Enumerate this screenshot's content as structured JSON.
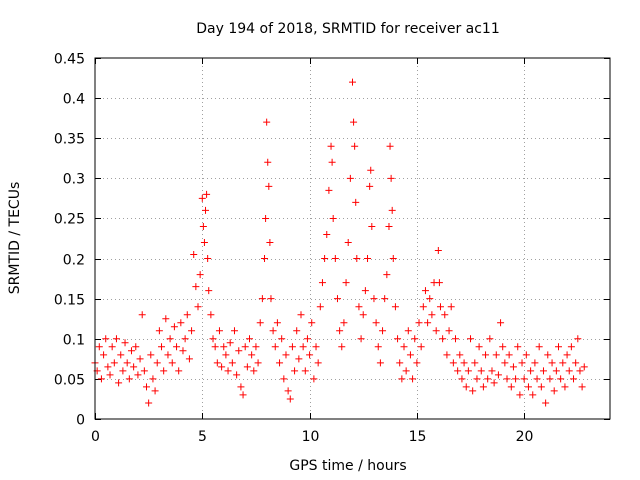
{
  "chart_data": {
    "type": "scatter",
    "title": "Day 194 of 2018, SRMTID for receiver ac11",
    "xlabel": "GPS time / hours",
    "ylabel": "SRMTID / TECUs",
    "xlim": [
      0,
      24
    ],
    "ylim": [
      0,
      0.45
    ],
    "grid": true,
    "marker": "+",
    "color": "#ff0000",
    "x_ticks": [
      0,
      5,
      10,
      15,
      20
    ],
    "x_tick_labels": [
      "0",
      "5",
      "10",
      "15",
      "20"
    ],
    "y_ticks": [
      0,
      0.05,
      0.1,
      0.15,
      0.2,
      0.25,
      0.3,
      0.35,
      0.4,
      0.45
    ],
    "y_tick_labels": [
      "0",
      "0.05",
      "0.1",
      "0.15",
      "0.2",
      "0.25",
      "0.3",
      "0.35",
      "0.4",
      "0.45"
    ],
    "series": [
      {
        "name": "SRMTID",
        "points": [
          [
            0.0,
            0.07
          ],
          [
            0.1,
            0.06
          ],
          [
            0.2,
            0.09
          ],
          [
            0.3,
            0.05
          ],
          [
            0.4,
            0.08
          ],
          [
            0.5,
            0.1
          ],
          [
            0.6,
            0.065
          ],
          [
            0.7,
            0.055
          ],
          [
            0.8,
            0.09
          ],
          [
            0.9,
            0.07
          ],
          [
            1.0,
            0.1
          ],
          [
            1.1,
            0.045
          ],
          [
            1.2,
            0.08
          ],
          [
            1.3,
            0.06
          ],
          [
            1.4,
            0.095
          ],
          [
            1.5,
            0.07
          ],
          [
            1.6,
            0.05
          ],
          [
            1.7,
            0.085
          ],
          [
            1.8,
            0.065
          ],
          [
            1.9,
            0.09
          ],
          [
            2.0,
            0.055
          ],
          [
            2.1,
            0.075
          ],
          [
            2.2,
            0.13
          ],
          [
            2.3,
            0.06
          ],
          [
            2.4,
            0.04
          ],
          [
            2.5,
            0.02
          ],
          [
            2.6,
            0.08
          ],
          [
            2.7,
            0.05
          ],
          [
            2.8,
            0.035
          ],
          [
            2.9,
            0.07
          ],
          [
            3.0,
            0.11
          ],
          [
            3.1,
            0.09
          ],
          [
            3.2,
            0.06
          ],
          [
            3.3,
            0.125
          ],
          [
            3.4,
            0.08
          ],
          [
            3.5,
            0.1
          ],
          [
            3.6,
            0.07
          ],
          [
            3.7,
            0.115
          ],
          [
            3.8,
            0.09
          ],
          [
            3.9,
            0.06
          ],
          [
            4.0,
            0.12
          ],
          [
            4.1,
            0.085
          ],
          [
            4.2,
            0.1
          ],
          [
            4.3,
            0.13
          ],
          [
            4.4,
            0.075
          ],
          [
            4.5,
            0.11
          ],
          [
            4.6,
            0.205
          ],
          [
            4.7,
            0.165
          ],
          [
            4.8,
            0.14
          ],
          [
            4.9,
            0.18
          ],
          [
            5.0,
            0.275
          ],
          [
            5.05,
            0.24
          ],
          [
            5.1,
            0.22
          ],
          [
            5.15,
            0.26
          ],
          [
            5.2,
            0.28
          ],
          [
            5.25,
            0.2
          ],
          [
            5.3,
            0.16
          ],
          [
            5.4,
            0.13
          ],
          [
            5.5,
            0.1
          ],
          [
            5.6,
            0.09
          ],
          [
            5.7,
            0.07
          ],
          [
            5.8,
            0.11
          ],
          [
            5.9,
            0.065
          ],
          [
            6.0,
            0.09
          ],
          [
            6.1,
            0.08
          ],
          [
            6.2,
            0.06
          ],
          [
            6.3,
            0.095
          ],
          [
            6.4,
            0.07
          ],
          [
            6.5,
            0.11
          ],
          [
            6.6,
            0.055
          ],
          [
            6.7,
            0.085
          ],
          [
            6.8,
            0.04
          ],
          [
            6.9,
            0.03
          ],
          [
            7.0,
            0.09
          ],
          [
            7.1,
            0.065
          ],
          [
            7.2,
            0.1
          ],
          [
            7.3,
            0.08
          ],
          [
            7.4,
            0.06
          ],
          [
            7.5,
            0.09
          ],
          [
            7.6,
            0.07
          ],
          [
            7.7,
            0.12
          ],
          [
            7.8,
            0.15
          ],
          [
            7.9,
            0.2
          ],
          [
            7.95,
            0.25
          ],
          [
            8.0,
            0.37
          ],
          [
            8.05,
            0.32
          ],
          [
            8.1,
            0.29
          ],
          [
            8.15,
            0.22
          ],
          [
            8.2,
            0.15
          ],
          [
            8.3,
            0.11
          ],
          [
            8.4,
            0.09
          ],
          [
            8.5,
            0.12
          ],
          [
            8.6,
            0.07
          ],
          [
            8.7,
            0.1
          ],
          [
            8.8,
            0.05
          ],
          [
            8.9,
            0.08
          ],
          [
            9.0,
            0.035
          ],
          [
            9.1,
            0.025
          ],
          [
            9.2,
            0.09
          ],
          [
            9.3,
            0.06
          ],
          [
            9.4,
            0.11
          ],
          [
            9.5,
            0.075
          ],
          [
            9.6,
            0.13
          ],
          [
            9.7,
            0.09
          ],
          [
            9.8,
            0.06
          ],
          [
            9.9,
            0.1
          ],
          [
            10.0,
            0.08
          ],
          [
            10.1,
            0.12
          ],
          [
            10.2,
            0.05
          ],
          [
            10.3,
            0.09
          ],
          [
            10.4,
            0.07
          ],
          [
            10.5,
            0.14
          ],
          [
            10.6,
            0.17
          ],
          [
            10.7,
            0.2
          ],
          [
            10.8,
            0.23
          ],
          [
            10.9,
            0.285
          ],
          [
            11.0,
            0.34
          ],
          [
            11.05,
            0.32
          ],
          [
            11.1,
            0.25
          ],
          [
            11.2,
            0.2
          ],
          [
            11.3,
            0.15
          ],
          [
            11.4,
            0.11
          ],
          [
            11.5,
            0.09
          ],
          [
            11.6,
            0.12
          ],
          [
            11.7,
            0.17
          ],
          [
            11.8,
            0.22
          ],
          [
            11.9,
            0.3
          ],
          [
            12.0,
            0.42
          ],
          [
            12.05,
            0.37
          ],
          [
            12.1,
            0.34
          ],
          [
            12.15,
            0.27
          ],
          [
            12.2,
            0.2
          ],
          [
            12.3,
            0.14
          ],
          [
            12.4,
            0.1
          ],
          [
            12.5,
            0.13
          ],
          [
            12.6,
            0.16
          ],
          [
            12.7,
            0.2
          ],
          [
            12.8,
            0.29
          ],
          [
            12.85,
            0.31
          ],
          [
            12.9,
            0.24
          ],
          [
            13.0,
            0.15
          ],
          [
            13.1,
            0.12
          ],
          [
            13.2,
            0.09
          ],
          [
            13.3,
            0.07
          ],
          [
            13.4,
            0.11
          ],
          [
            13.5,
            0.15
          ],
          [
            13.6,
            0.18
          ],
          [
            13.7,
            0.24
          ],
          [
            13.75,
            0.34
          ],
          [
            13.8,
            0.3
          ],
          [
            13.85,
            0.26
          ],
          [
            13.9,
            0.2
          ],
          [
            14.0,
            0.14
          ],
          [
            14.1,
            0.1
          ],
          [
            14.2,
            0.07
          ],
          [
            14.3,
            0.05
          ],
          [
            14.4,
            0.09
          ],
          [
            14.5,
            0.06
          ],
          [
            14.6,
            0.11
          ],
          [
            14.7,
            0.08
          ],
          [
            14.8,
            0.05
          ],
          [
            14.9,
            0.1
          ],
          [
            15.0,
            0.07
          ],
          [
            15.1,
            0.12
          ],
          [
            15.2,
            0.09
          ],
          [
            15.3,
            0.14
          ],
          [
            15.4,
            0.16
          ],
          [
            15.5,
            0.12
          ],
          [
            15.6,
            0.15
          ],
          [
            15.7,
            0.13
          ],
          [
            15.8,
            0.17
          ],
          [
            15.9,
            0.11
          ],
          [
            16.0,
            0.21
          ],
          [
            16.05,
            0.17
          ],
          [
            16.1,
            0.14
          ],
          [
            16.2,
            0.1
          ],
          [
            16.3,
            0.13
          ],
          [
            16.4,
            0.08
          ],
          [
            16.5,
            0.11
          ],
          [
            16.6,
            0.14
          ],
          [
            16.7,
            0.07
          ],
          [
            16.8,
            0.1
          ],
          [
            16.9,
            0.06
          ],
          [
            17.0,
            0.08
          ],
          [
            17.1,
            0.05
          ],
          [
            17.2,
            0.07
          ],
          [
            17.3,
            0.04
          ],
          [
            17.4,
            0.06
          ],
          [
            17.5,
            0.1
          ],
          [
            17.6,
            0.035
          ],
          [
            17.7,
            0.07
          ],
          [
            17.8,
            0.05
          ],
          [
            17.9,
            0.09
          ],
          [
            18.0,
            0.06
          ],
          [
            18.1,
            0.04
          ],
          [
            18.2,
            0.08
          ],
          [
            18.3,
            0.05
          ],
          [
            18.4,
            0.1
          ],
          [
            18.5,
            0.06
          ],
          [
            18.6,
            0.045
          ],
          [
            18.7,
            0.08
          ],
          [
            18.8,
            0.055
          ],
          [
            18.9,
            0.12
          ],
          [
            19.0,
            0.09
          ],
          [
            19.1,
            0.07
          ],
          [
            19.2,
            0.05
          ],
          [
            19.3,
            0.08
          ],
          [
            19.4,
            0.04
          ],
          [
            19.5,
            0.065
          ],
          [
            19.6,
            0.05
          ],
          [
            19.7,
            0.09
          ],
          [
            19.8,
            0.03
          ],
          [
            19.9,
            0.07
          ],
          [
            20.0,
            0.05
          ],
          [
            20.1,
            0.08
          ],
          [
            20.2,
            0.04
          ],
          [
            20.3,
            0.06
          ],
          [
            20.4,
            0.03
          ],
          [
            20.5,
            0.07
          ],
          [
            20.6,
            0.05
          ],
          [
            20.7,
            0.09
          ],
          [
            20.8,
            0.04
          ],
          [
            20.9,
            0.06
          ],
          [
            21.0,
            0.02
          ],
          [
            21.1,
            0.08
          ],
          [
            21.2,
            0.05
          ],
          [
            21.3,
            0.07
          ],
          [
            21.4,
            0.035
          ],
          [
            21.5,
            0.06
          ],
          [
            21.6,
            0.09
          ],
          [
            21.7,
            0.05
          ],
          [
            21.8,
            0.07
          ],
          [
            21.9,
            0.04
          ],
          [
            22.0,
            0.08
          ],
          [
            22.1,
            0.06
          ],
          [
            22.2,
            0.09
          ],
          [
            22.3,
            0.05
          ],
          [
            22.4,
            0.07
          ],
          [
            22.5,
            0.1
          ],
          [
            22.6,
            0.06
          ],
          [
            22.7,
            0.04
          ],
          [
            22.8,
            0.065
          ]
        ]
      }
    ]
  }
}
